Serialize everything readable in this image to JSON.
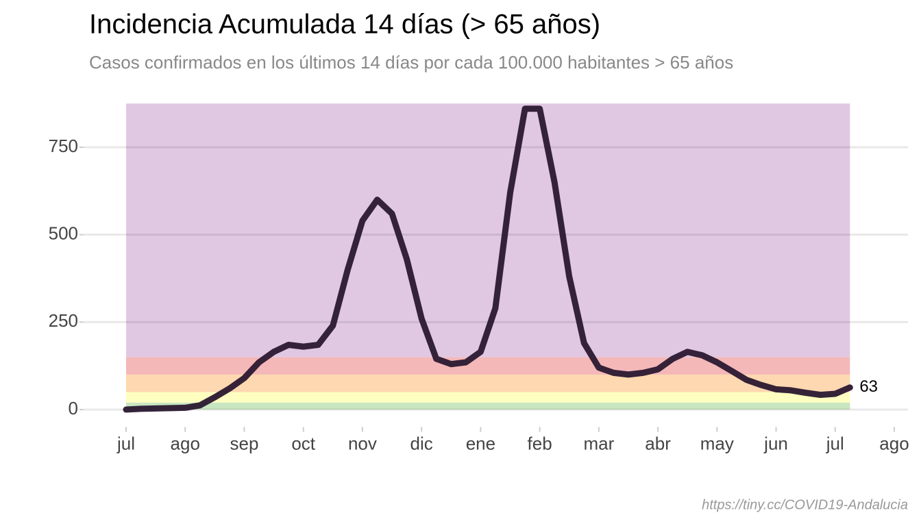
{
  "chart_data": {
    "type": "line",
    "title": "Incidencia Acumulada 14 días (> 65 años)",
    "subtitle": "Casos confirmados en los últimos 14 días por cada 100.000 habitantes > 65 años",
    "caption": "https://tiny.cc/COVID19-Andalucia",
    "categories": [
      "jul",
      null,
      null,
      null,
      "ago",
      null,
      null,
      null,
      "sep",
      null,
      null,
      null,
      "oct",
      null,
      null,
      null,
      "nov",
      null,
      null,
      null,
      "dic",
      null,
      null,
      null,
      "ene",
      null,
      null,
      null,
      "feb",
      null,
      null,
      null,
      "mar",
      null,
      null,
      null,
      "abr",
      null,
      null,
      null,
      "may",
      null,
      null,
      null,
      "jun",
      null,
      null,
      null,
      "jul",
      null,
      null,
      null,
      "ago"
    ],
    "series": [
      {
        "color": "#2a1830",
        "values": [
          0,
          2,
          3,
          4,
          5,
          12,
          35,
          60,
          90,
          135,
          165,
          185,
          180,
          185,
          240,
          400,
          540,
          600,
          560,
          430,
          260,
          145,
          130,
          135,
          165,
          290,
          620,
          860,
          860,
          650,
          380,
          190,
          120,
          105,
          100,
          105,
          115,
          145,
          165,
          155,
          135,
          110,
          85,
          70,
          58,
          55,
          48,
          42,
          45,
          63,
          null,
          null,
          null
        ]
      }
    ],
    "bands": [
      {
        "from": 0,
        "to": 20,
        "color": "#c8e6c0"
      },
      {
        "from": 20,
        "to": 50,
        "color": "#fefec0"
      },
      {
        "from": 50,
        "to": 100,
        "color": "#fdd8b0"
      },
      {
        "from": 100,
        "to": 150,
        "color": "#f4b8b8"
      },
      {
        "from": 150,
        "to": 875,
        "color": "#e0c8e2"
      }
    ],
    "ylim": [
      -50,
      900
    ],
    "yticks": [
      0,
      250,
      500,
      750
    ],
    "grid": true
  }
}
